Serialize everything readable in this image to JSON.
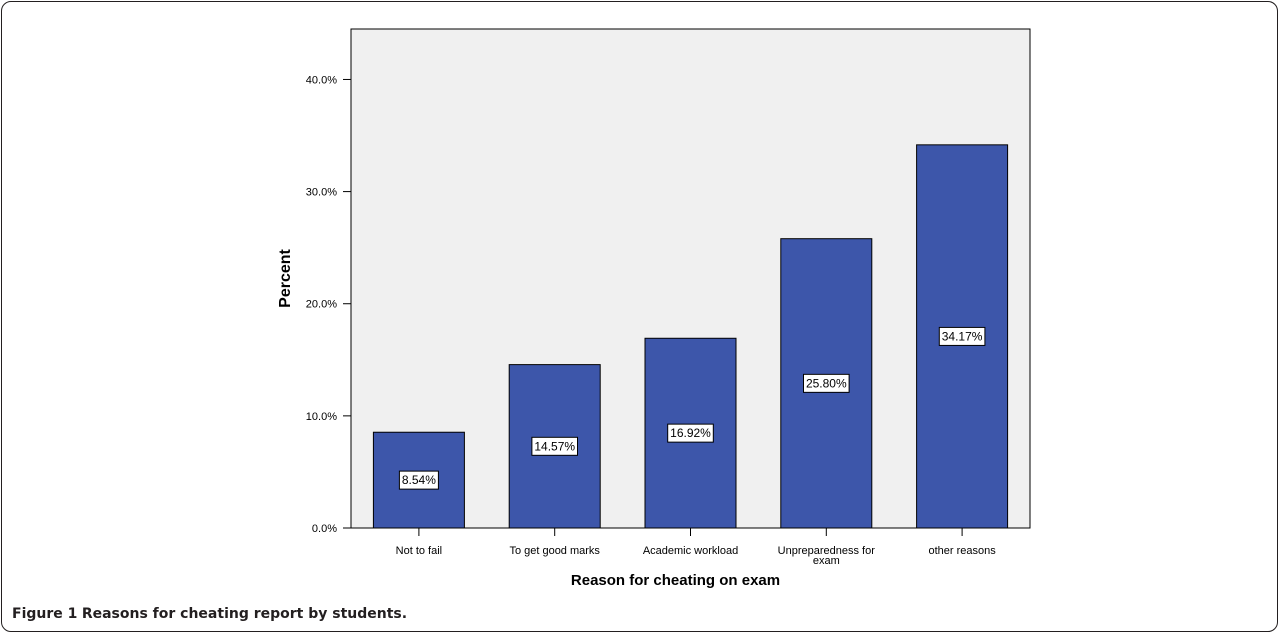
{
  "chart_data": {
    "type": "bar",
    "categories": [
      "Not to fail",
      "To  get good marks",
      "Academic workload",
      "Unpreparedness for exam",
      "other reasons"
    ],
    "category_lines": [
      [
        "Not to fail"
      ],
      [
        "To  get good marks"
      ],
      [
        "Academic workload"
      ],
      [
        "Unpreparedness for",
        "exam"
      ],
      [
        "other reasons"
      ]
    ],
    "values": [
      8.54,
      14.57,
      16.92,
      25.8,
      34.17
    ],
    "data_labels": [
      "8.54%",
      "14.57%",
      "16.92%",
      "25.80%",
      "34.17%"
    ],
    "ylim": [
      0,
      44.5
    ],
    "yticks": [
      0,
      10,
      20,
      30,
      40
    ],
    "ytick_labels": [
      "0.0%",
      "10.0%",
      "20.0%",
      "30.0%",
      "40.0%"
    ],
    "xlabel": "Reason for cheating on exam",
    "ylabel": "Percent",
    "grid": false,
    "legend": "none",
    "colors": {
      "bar": "#3d56aa",
      "plot_bg": "#f0f0f0",
      "axis": "#000000"
    }
  },
  "caption": {
    "label": "Figure 1",
    "text": "Reasons for cheating report by students."
  }
}
